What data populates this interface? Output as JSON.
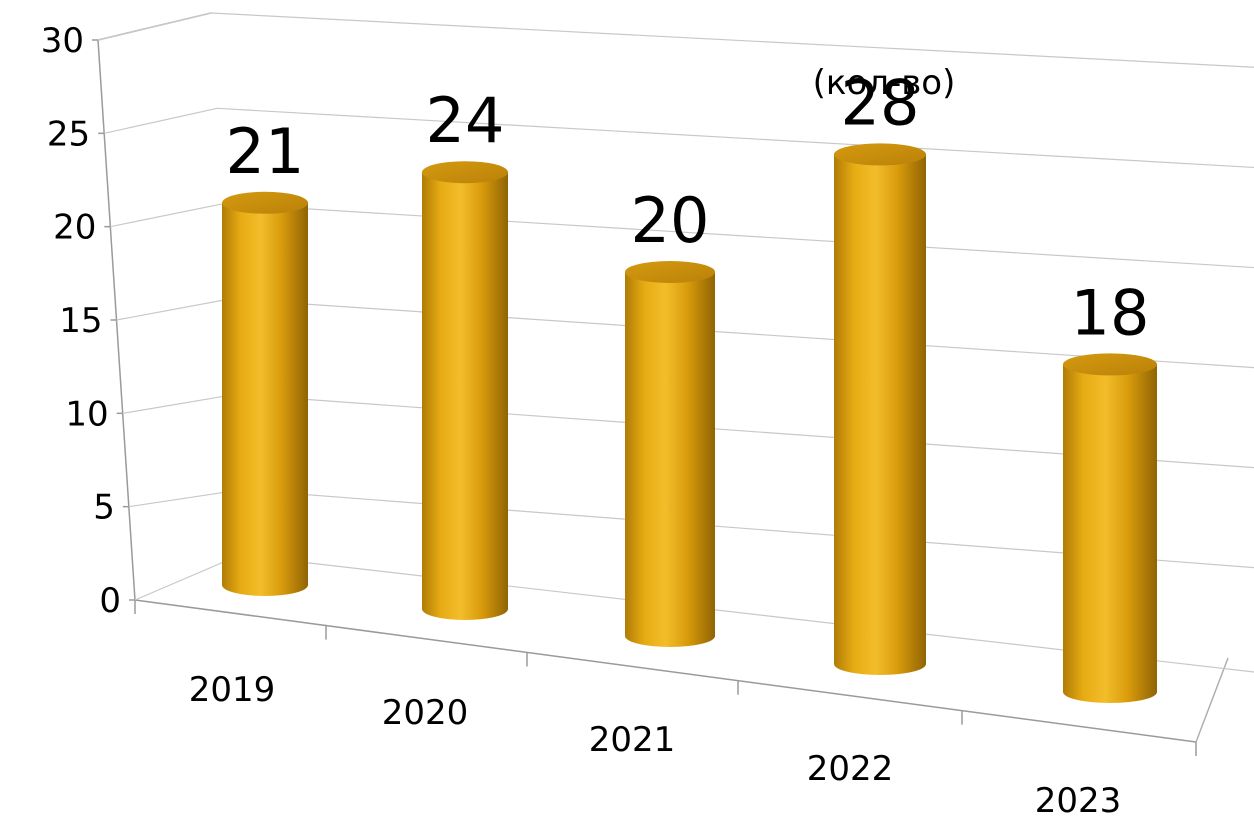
{
  "chart_data": {
    "type": "bar",
    "style": "3d-cylinder",
    "categories": [
      "2019",
      "2020",
      "2021",
      "2022",
      "2023"
    ],
    "values": [
      21,
      24,
      20,
      28,
      18
    ],
    "data_labels": [
      "21",
      "24",
      "20",
      "28",
      "18"
    ],
    "annotation": "(кол-во)",
    "ylim": [
      0,
      30
    ],
    "yticks": [
      "0",
      "5",
      "10",
      "15",
      "20",
      "25",
      "30"
    ],
    "grid": true,
    "bar_color": "#E3A70F"
  }
}
